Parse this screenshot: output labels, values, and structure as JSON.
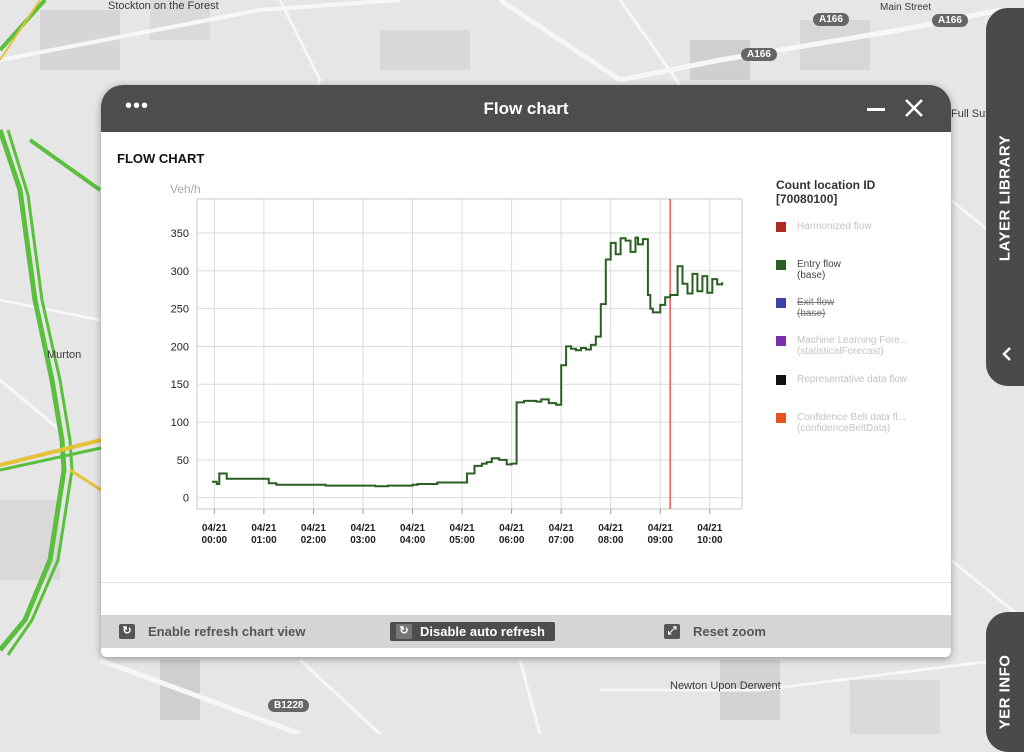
{
  "map": {
    "labels": [
      "Stockton on the Forest",
      "Murton",
      "Main Street",
      "Full Sut",
      "Newton Upon Derwent"
    ],
    "roads": [
      "A166",
      "A166",
      "A166",
      "B1228"
    ]
  },
  "side_tabs": {
    "layer_library": "LAYER LIBRARY",
    "layer_info": "YER INFO"
  },
  "window": {
    "title": "Flow chart",
    "menu_glyph": "•••",
    "section_title": "FLOW CHART"
  },
  "legend": {
    "title_line1": "Count location ID",
    "title_line2": "[70080100]",
    "items": [
      {
        "label": "Harmonized flow",
        "sub": "",
        "color": "#b02a25",
        "state": "inactive"
      },
      {
        "label": "Entry flow",
        "sub": "(base)",
        "color": "#2a5e22",
        "state": "active"
      },
      {
        "label": "Exit flow",
        "sub": "(base)",
        "color": "#3b44a6",
        "state": "struck"
      },
      {
        "label": "Machine Learning Fore...",
        "sub": "(statisticalForecast)",
        "color": "#7b2fa8",
        "state": "inactive"
      },
      {
        "label": "Representative data flow",
        "sub": "",
        "color": "#111111",
        "state": "inactive"
      },
      {
        "label": "Confidence Belt data fl...",
        "sub": "(confidenceBeltData)",
        "color": "#e8521f",
        "state": "inactive"
      }
    ]
  },
  "footer": {
    "refresh_view": "Enable refresh chart view",
    "disable_auto": "Disable auto refresh",
    "reset_zoom": "Reset zoom"
  },
  "chart_data": {
    "type": "line",
    "ylabel": "Veh/h",
    "ylim": [
      -15,
      395
    ],
    "xlim": [
      -0.35,
      10.65
    ],
    "yticks": [
      0,
      50,
      100,
      150,
      200,
      250,
      300,
      350
    ],
    "xticks": [
      {
        "x": 0,
        "date": "04/21",
        "time": "00:00"
      },
      {
        "x": 1,
        "date": "04/21",
        "time": "01:00"
      },
      {
        "x": 2,
        "date": "04/21",
        "time": "02:00"
      },
      {
        "x": 3,
        "date": "04/21",
        "time": "03:00"
      },
      {
        "x": 4,
        "date": "04/21",
        "time": "04:00"
      },
      {
        "x": 5,
        "date": "04/21",
        "time": "05:00"
      },
      {
        "x": 6,
        "date": "04/21",
        "time": "06:00"
      },
      {
        "x": 7,
        "date": "04/21",
        "time": "07:00"
      },
      {
        "x": 8,
        "date": "04/21",
        "time": "08:00"
      },
      {
        "x": 9,
        "date": "04/21",
        "time": "09:00"
      },
      {
        "x": 10,
        "date": "04/21",
        "time": "10:00"
      }
    ],
    "grid": true,
    "step": true,
    "current_time_x": 9.2,
    "series": [
      {
        "name": "Entry flow",
        "color": "#2a5e22",
        "x": [
          -0.05,
          0.05,
          0.1,
          0.25,
          0.5,
          0.75,
          1.0,
          1.1,
          1.25,
          1.5,
          1.75,
          2.0,
          2.25,
          2.5,
          2.75,
          3.0,
          3.25,
          3.5,
          3.75,
          4.0,
          4.1,
          4.25,
          4.5,
          4.75,
          5.0,
          5.1,
          5.25,
          5.4,
          5.5,
          5.6,
          5.75,
          5.9,
          6.0,
          6.1,
          6.25,
          6.4,
          6.5,
          6.6,
          6.75,
          6.9,
          7.0,
          7.1,
          7.2,
          7.3,
          7.4,
          7.5,
          7.6,
          7.7,
          7.8,
          7.9,
          8.0,
          8.1,
          8.2,
          8.3,
          8.4,
          8.5,
          8.55,
          8.65,
          8.75,
          8.8,
          8.85,
          9.0,
          9.1,
          9.2,
          9.35,
          9.45,
          9.55,
          9.65,
          9.75,
          9.85,
          9.95,
          10.05,
          10.15,
          10.25
        ],
        "y": [
          21,
          18,
          32,
          25,
          25,
          25,
          25,
          19,
          17,
          17,
          17,
          17,
          16,
          16,
          16,
          16,
          15,
          16,
          16,
          17,
          18,
          18,
          20,
          20,
          20,
          32,
          42,
          45,
          47,
          52,
          50,
          44,
          45,
          126,
          128,
          128,
          127,
          130,
          125,
          123,
          175,
          200,
          197,
          195,
          198,
          196,
          202,
          213,
          256,
          315,
          337,
          322,
          343,
          340,
          325,
          344,
          335,
          342,
          268,
          250,
          245,
          255,
          265,
          268,
          306,
          283,
          270,
          296,
          273,
          293,
          271,
          289,
          282,
          285
        ]
      }
    ]
  }
}
